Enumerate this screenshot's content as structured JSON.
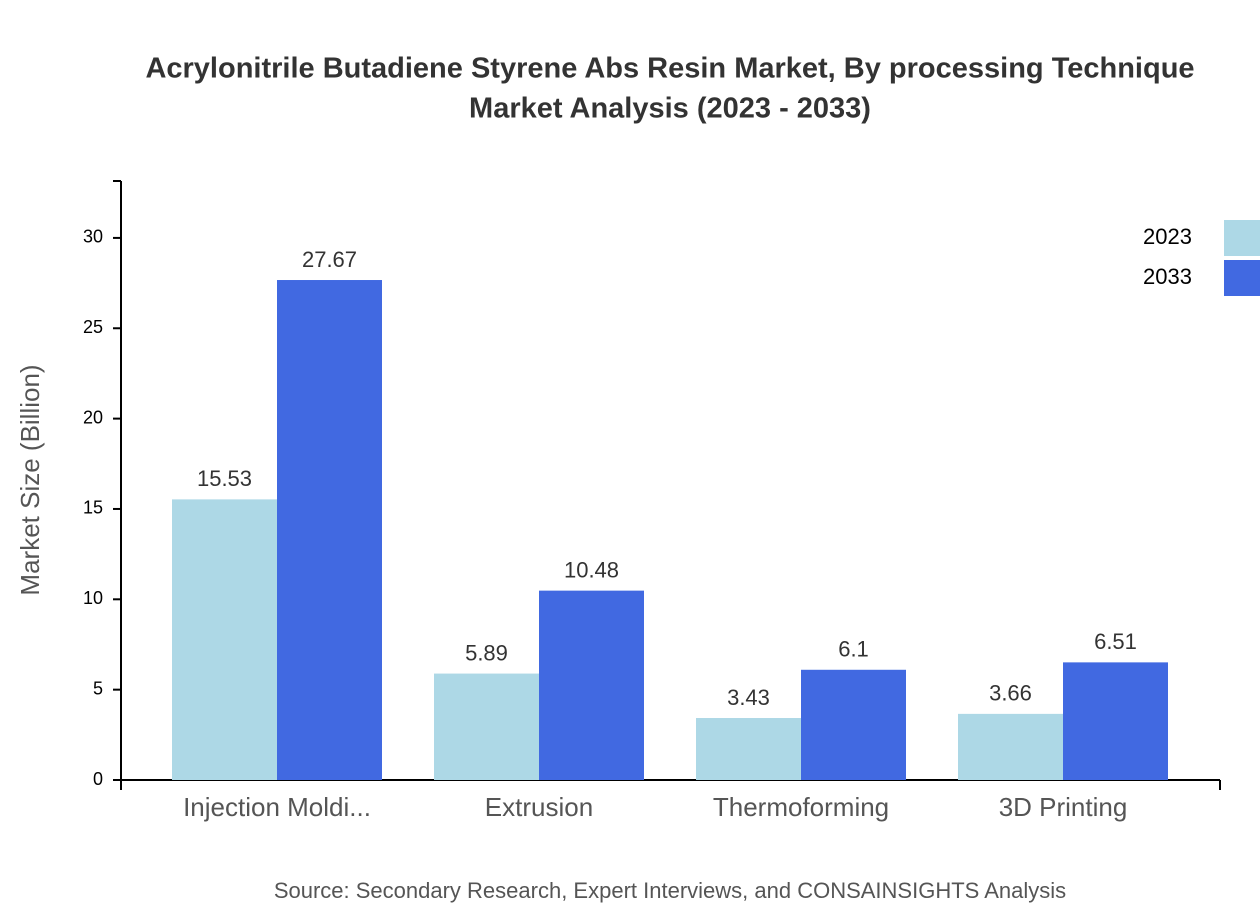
{
  "chart_data": {
    "type": "bar",
    "title": [
      "Acrylonitrile Butadiene Styrene Abs Resin Market, By processing Technique",
      "Market Analysis (2023 - 2033)"
    ],
    "y_label": "Market Size (Billion)",
    "source": "Source: Secondary Research, Expert Interviews, and CONSAINSIGHTS Analysis",
    "categories": [
      "Injection Moldi...",
      "Extrusion",
      "Thermoforming",
      "3D Printing"
    ],
    "series": [
      {
        "name": "2023",
        "color": "#add8e6",
        "values": [
          15.53,
          5.89,
          3.43,
          3.66
        ]
      },
      {
        "name": "2033",
        "color": "#4169e1",
        "values": [
          27.67,
          10.48,
          6.1,
          6.51
        ]
      }
    ],
    "ylim": [
      0,
      33.15
    ],
    "yticks": [
      0,
      5,
      10,
      15,
      20,
      25,
      30
    ],
    "legend": "top-right"
  }
}
